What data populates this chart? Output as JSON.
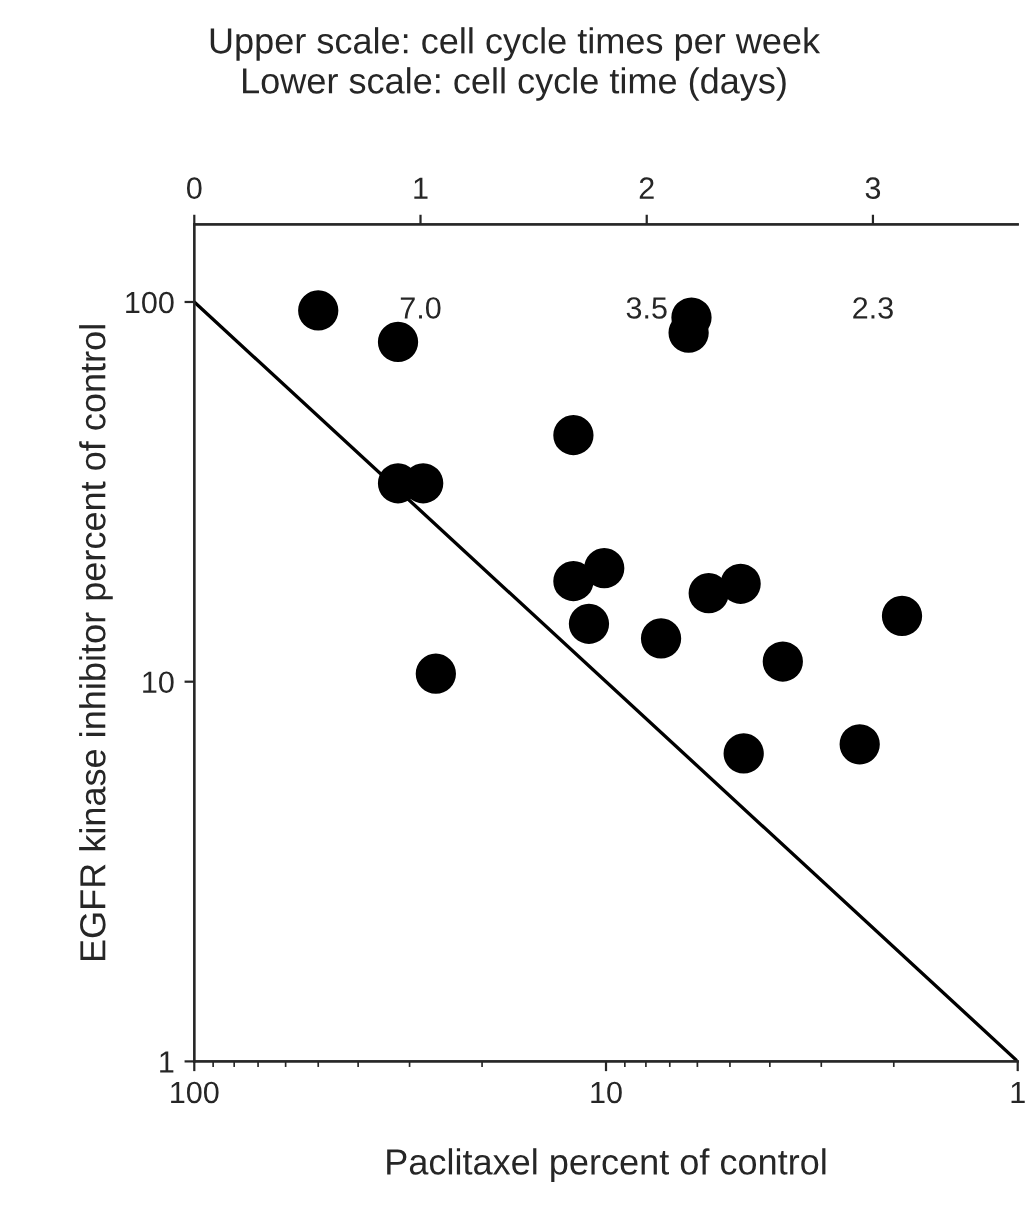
{
  "chart_data": {
    "type": "scatter",
    "title": "Upper scale: cell cycle times per week",
    "subtitle": "Lower scale: cell cycle time (days)",
    "xlabel": "Paclitaxel percent of control",
    "ylabel": "EGFR kinase inhibitor percent of control",
    "log": "xy",
    "xlim": [
      100,
      1
    ],
    "xticks": [
      100,
      10,
      1
    ],
    "ylim": [
      1,
      160
    ],
    "yticks": [
      1,
      10,
      100
    ],
    "x2lim": [
      0,
      3.64
    ],
    "x2ticks": [
      0,
      1,
      2,
      3
    ],
    "marker": "circle",
    "grid": false,
    "annotations": [
      "7.0",
      "3.5",
      "2.3"
    ],
    "series": [
      {
        "color": "#000000",
        "x": [
          50,
          32,
          6.2,
          6.3,
          12,
          32,
          27.8,
          12,
          10.1,
          11.0,
          25.9,
          7.35,
          5.63,
          4.71,
          3.72,
          1.91,
          4.63,
          2.42
        ],
        "values": [
          95,
          78.5,
          91,
          83,
          44.6,
          33.3,
          33.3,
          18.4,
          19.9,
          14.2,
          10.5,
          13.0,
          17.1,
          18.1,
          11.3,
          14.9,
          6.47,
          6.84
        ]
      },
      {
        "type": "line",
        "color": "#000000",
        "line_style": "solid",
        "marker": "none",
        "x": [
          100,
          1
        ],
        "values": [
          100,
          1
        ]
      }
    ]
  }
}
